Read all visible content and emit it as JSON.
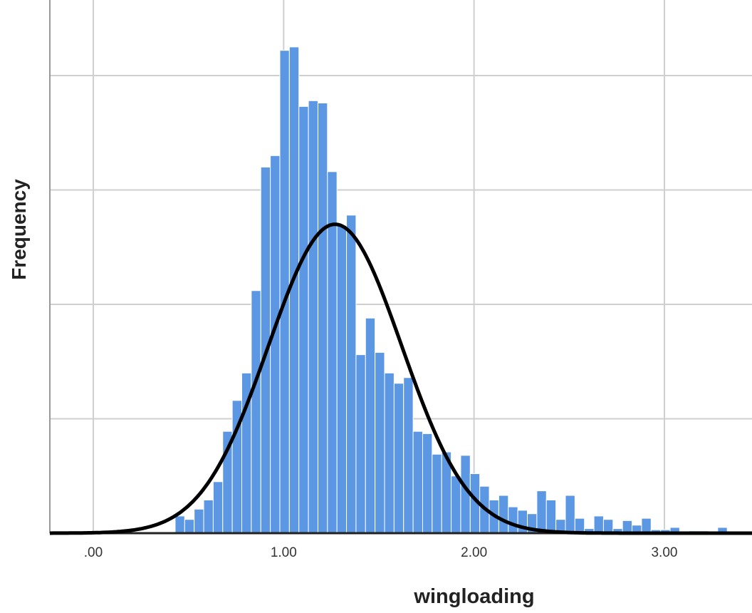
{
  "chart_data": {
    "type": "bar",
    "title": "",
    "xlabel": "wingloading",
    "ylabel": "Frequency",
    "xlim": [
      -0.22,
      3.45
    ],
    "ylim": [
      0,
      4.25
    ],
    "x_ticks": [
      0,
      1,
      2,
      3
    ],
    "x_tick_labels": [
      ".00",
      "1.00",
      "2.00",
      "3.00"
    ],
    "y_gridlines": [
      1,
      2,
      3,
      4
    ],
    "y_tick_labels_visible": false,
    "grid": true,
    "bar_color": "#5b97e3",
    "curve_color": "#000000",
    "bin_width": 0.05,
    "bins_start": [
      0.43,
      0.48,
      0.53,
      0.58,
      0.63,
      0.68,
      0.73,
      0.78,
      0.83,
      0.88,
      0.93,
      0.98,
      1.03,
      1.08,
      1.13,
      1.18,
      1.23,
      1.28,
      1.33,
      1.38,
      1.43,
      1.48,
      1.53,
      1.58,
      1.63,
      1.68,
      1.73,
      1.78,
      1.83,
      1.88,
      1.93,
      1.98,
      2.03,
      2.08,
      2.13,
      2.18,
      2.23,
      2.28,
      2.33,
      2.38,
      2.43,
      2.48,
      2.53,
      2.58,
      2.63,
      2.68,
      2.73,
      2.78,
      2.83,
      2.88,
      2.93,
      2.98,
      3.03,
      3.08,
      3.13,
      3.18,
      3.23,
      3.28
    ],
    "frequencies": [
      0.15,
      0.12,
      0.21,
      0.29,
      0.45,
      0.89,
      1.16,
      1.4,
      2.12,
      3.2,
      3.3,
      4.22,
      4.25,
      3.73,
      3.78,
      3.76,
      3.16,
      2.69,
      2.78,
      1.56,
      1.88,
      1.58,
      1.4,
      1.31,
      1.36,
      0.89,
      0.87,
      0.69,
      0.71,
      0.5,
      0.68,
      0.52,
      0.41,
      0.29,
      0.33,
      0.23,
      0.2,
      0.17,
      0.37,
      0.29,
      0.12,
      0.33,
      0.13,
      0.04,
      0.15,
      0.12,
      0.04,
      0.11,
      0.07,
      0.13,
      0.03,
      0.03,
      0.05,
      0.0,
      0.02,
      0.02,
      0.0,
      0.05
    ],
    "normal_curve": {
      "mean": 1.27,
      "sd": 0.35,
      "peak": 2.7
    }
  }
}
